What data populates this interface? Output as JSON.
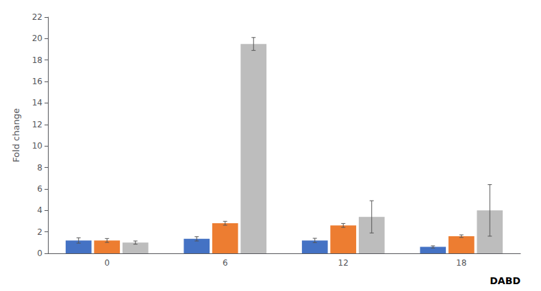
{
  "chart_data": {
    "type": "bar",
    "categories": [
      "0",
      "6",
      "12",
      "18"
    ],
    "series": [
      {
        "color": "#4472C4",
        "values": [
          1.2,
          1.35,
          1.2,
          0.6
        ],
        "errors": [
          0.25,
          0.2,
          0.2,
          0.1
        ]
      },
      {
        "color": "#ED7D31",
        "values": [
          1.2,
          2.8,
          2.6,
          1.6
        ],
        "errors": [
          0.18,
          0.18,
          0.18,
          0.12
        ]
      },
      {
        "color": "#BDBDBD",
        "values": [
          1.0,
          19.5,
          3.4,
          4.0
        ],
        "errors": [
          0.15,
          0.6,
          1.5,
          2.4
        ]
      }
    ],
    "ylabel": "Fold change",
    "xlabel": "DABD",
    "ylim": [
      0,
      22
    ],
    "yticks": [
      0,
      2,
      4,
      6,
      8,
      10,
      12,
      14,
      16,
      18,
      20,
      22
    ],
    "grid": false
  }
}
